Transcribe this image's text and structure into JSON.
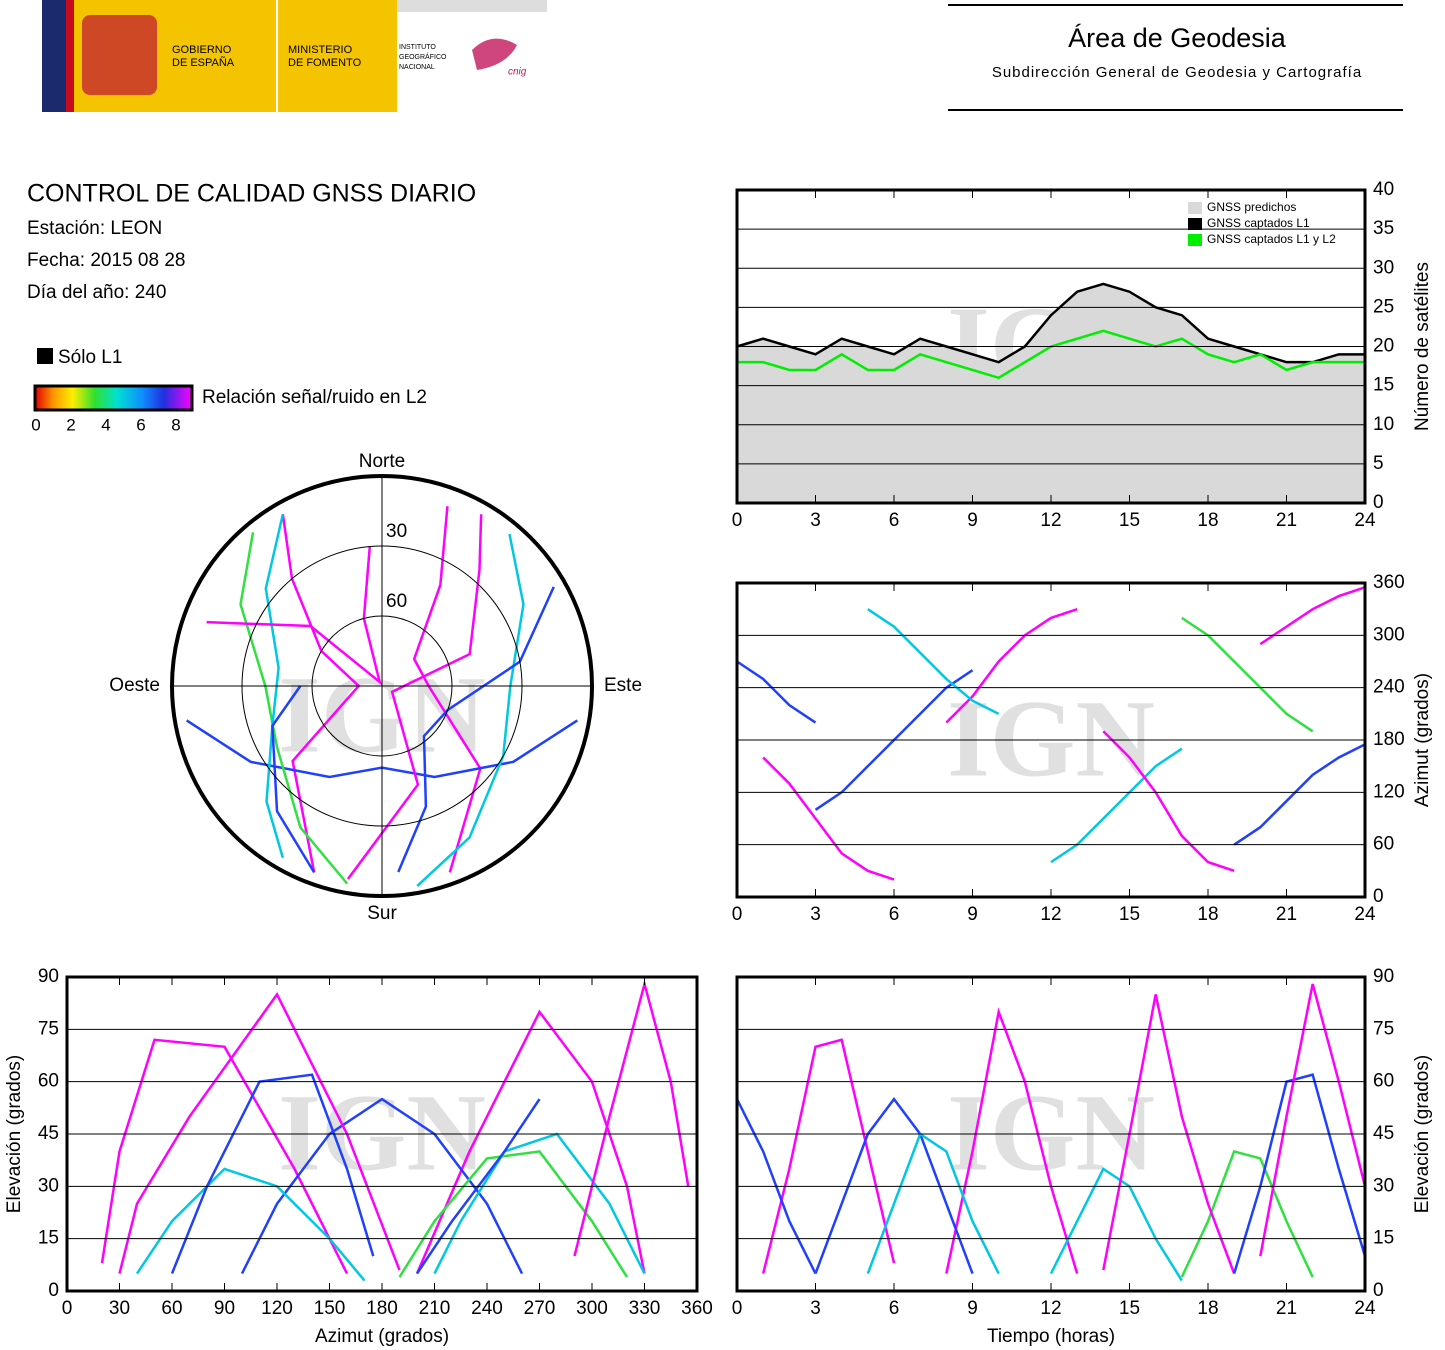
{
  "header": {
    "gobierno": [
      "GOBIERNO",
      "DE ESPAÑA"
    ],
    "ministerio": [
      "MINISTERIO",
      "DE FOMENTO"
    ],
    "instituto": [
      "INSTITUTO",
      "GEOGRÁFICO",
      "NACIONAL"
    ],
    "cnig": "cnig",
    "area": "Área de Geodesia",
    "subdireccion": "Subdirección General de Geodesia y Cartografía"
  },
  "report": {
    "title": "CONTROL DE CALIDAD GNSS DIARIO",
    "station": "Estación: LEON",
    "date": "Fecha: 2015 08 28",
    "doy": "Día del año: 240",
    "l1_only": "Sólo L1",
    "snr_label": "Relación señal/ruido en L2",
    "snr_ticks": [
      0,
      2,
      4,
      6,
      8
    ],
    "watermark": "IGN"
  },
  "chart_data": [
    {
      "type": "line",
      "x": [
        0,
        1,
        2,
        3,
        4,
        5,
        6,
        7,
        8,
        9,
        10,
        11,
        12,
        13,
        14,
        15,
        16,
        17,
        18,
        19,
        20,
        21,
        22,
        23,
        24
      ],
      "xlim": [
        0,
        24
      ],
      "xticks": [
        0,
        3,
        6,
        9,
        12,
        15,
        18,
        21,
        24
      ],
      "ylim": [
        0,
        40
      ],
      "yticks": [
        0,
        5,
        10,
        15,
        20,
        25,
        30,
        35,
        40
      ],
      "y_label": "Número de satélites",
      "grid": true,
      "series": [
        {
          "name": "GNSS predichos",
          "color": "#d9d9d9",
          "style": "area",
          "values": [
            20,
            21,
            20,
            19,
            21,
            20,
            19,
            21,
            20,
            19,
            18,
            20,
            24,
            27,
            28,
            27,
            25,
            24,
            21,
            20,
            19,
            18,
            18,
            19,
            19
          ]
        },
        {
          "name": "GNSS captados L1",
          "color": "#000000",
          "values": [
            20,
            21,
            20,
            19,
            21,
            20,
            19,
            21,
            20,
            19,
            18,
            20,
            24,
            27,
            28,
            27,
            25,
            24,
            21,
            20,
            19,
            18,
            18,
            19,
            19
          ]
        },
        {
          "name": "GNSS captados L1 y L2",
          "color": "#00ee00",
          "values": [
            18,
            18,
            17,
            17,
            19,
            17,
            17,
            19,
            18,
            17,
            16,
            18,
            20,
            21,
            22,
            21,
            20,
            21,
            19,
            18,
            19,
            17,
            18,
            18,
            18
          ]
        }
      ]
    },
    {
      "type": "polar",
      "rticks": [
        30,
        60
      ],
      "directions": {
        "north": "Norte",
        "south": "Sur",
        "east": "Este",
        "west": "Oeste"
      },
      "series": [
        {
          "color": "#ff00ff",
          "x": [
            160,
            130,
            90,
            50,
            30,
            20
          ],
          "values": [
            5,
            35,
            70,
            72,
            40,
            8
          ]
        },
        {
          "color": "#ff00ff",
          "x": [
            200,
            230,
            270,
            300,
            320,
            330
          ],
          "values": [
            5,
            40,
            80,
            60,
            30,
            5
          ]
        },
        {
          "color": "#2040ff",
          "x": [
            100,
            120,
            150,
            180,
            210,
            240,
            260
          ],
          "values": [
            5,
            25,
            45,
            55,
            45,
            25,
            5
          ]
        },
        {
          "color": "#00c8e0",
          "x": [
            40,
            60,
            90,
            120,
            150,
            170
          ],
          "values": [
            5,
            20,
            35,
            30,
            15,
            3
          ]
        },
        {
          "color": "#30e040",
          "x": [
            320,
            300,
            270,
            240,
            210,
            190
          ],
          "values": [
            4,
            20,
            40,
            38,
            20,
            4
          ]
        },
        {
          "color": "#ff00ff",
          "x": [
            190,
            160,
            120,
            70,
            40,
            30
          ],
          "values": [
            6,
            45,
            85,
            50,
            25,
            5
          ]
        },
        {
          "color": "#2040ff",
          "x": [
            60,
            80,
            110,
            140,
            160,
            175
          ],
          "values": [
            5,
            30,
            60,
            62,
            35,
            10
          ]
        },
        {
          "color": "#00c8e0",
          "x": [
            330,
            310,
            280,
            250,
            225,
            210
          ],
          "values": [
            5,
            25,
            45,
            40,
            20,
            5
          ]
        },
        {
          "color": "#ff00ff",
          "x": [
            290,
            310,
            330,
            345,
            355
          ],
          "values": [
            10,
            50,
            88,
            60,
            30
          ]
        },
        {
          "color": "#2040ff",
          "x": [
            270,
            250,
            220,
            200
          ],
          "values": [
            55,
            40,
            20,
            5
          ]
        }
      ]
    },
    {
      "type": "line",
      "xlim": [
        0,
        24
      ],
      "xticks": [
        0,
        3,
        6,
        9,
        12,
        15,
        18,
        21,
        24
      ],
      "ylim": [
        0,
        360
      ],
      "yticks": [
        0,
        60,
        120,
        180,
        240,
        300,
        360
      ],
      "y_label": "Azimut (grados)",
      "grid": true,
      "series": [
        {
          "color": "#ff00ff",
          "x": [
            1,
            2,
            3,
            4,
            5,
            6
          ],
          "values": [
            160,
            130,
            90,
            50,
            30,
            20
          ]
        },
        {
          "color": "#ff00ff",
          "x": [
            8,
            9,
            10,
            11,
            12,
            13
          ],
          "values": [
            200,
            230,
            270,
            300,
            320,
            330
          ]
        },
        {
          "color": "#2040ff",
          "x": [
            3,
            4,
            5,
            6,
            7,
            8,
            9
          ],
          "values": [
            100,
            120,
            150,
            180,
            210,
            240,
            260
          ]
        },
        {
          "color": "#00c8e0",
          "x": [
            12,
            13,
            14,
            15,
            16,
            17
          ],
          "values": [
            40,
            60,
            90,
            120,
            150,
            170
          ]
        },
        {
          "color": "#30e040",
          "x": [
            17,
            18,
            19,
            20,
            21,
            22
          ],
          "values": [
            320,
            300,
            270,
            240,
            210,
            190
          ]
        },
        {
          "color": "#ff00ff",
          "x": [
            14,
            15,
            16,
            17,
            18,
            19
          ],
          "values": [
            190,
            160,
            120,
            70,
            40,
            30
          ]
        },
        {
          "color": "#2040ff",
          "x": [
            19,
            20,
            21,
            22,
            23,
            24
          ],
          "values": [
            60,
            80,
            110,
            140,
            160,
            175
          ]
        },
        {
          "color": "#00c8e0",
          "x": [
            5,
            6,
            7,
            8,
            9,
            10
          ],
          "values": [
            330,
            310,
            280,
            250,
            225,
            210
          ]
        },
        {
          "color": "#ff00ff",
          "x": [
            20,
            21,
            22,
            23,
            24
          ],
          "values": [
            290,
            310,
            330,
            345,
            355
          ]
        },
        {
          "color": "#2040ff",
          "x": [
            0,
            1,
            2,
            3
          ],
          "values": [
            270,
            250,
            220,
            200
          ]
        }
      ]
    },
    {
      "type": "line",
      "xlim": [
        0,
        360
      ],
      "xticks": [
        0,
        30,
        60,
        90,
        120,
        150,
        180,
        210,
        240,
        270,
        300,
        330,
        360
      ],
      "ylim": [
        0,
        90
      ],
      "yticks": [
        0,
        15,
        30,
        45,
        60,
        75,
        90
      ],
      "x_label": "Azimut (grados)",
      "y_label": "Elevación (grados)",
      "grid": true,
      "series": [
        {
          "color": "#ff00ff",
          "x": [
            160,
            130,
            90,
            50,
            30,
            20
          ],
          "values": [
            5,
            35,
            70,
            72,
            40,
            8
          ]
        },
        {
          "color": "#ff00ff",
          "x": [
            200,
            230,
            270,
            300,
            320,
            330
          ],
          "values": [
            5,
            40,
            80,
            60,
            30,
            5
          ]
        },
        {
          "color": "#2040ff",
          "x": [
            100,
            120,
            150,
            180,
            210,
            240,
            260
          ],
          "values": [
            5,
            25,
            45,
            55,
            45,
            25,
            5
          ]
        },
        {
          "color": "#00c8e0",
          "x": [
            40,
            60,
            90,
            120,
            150,
            170
          ],
          "values": [
            5,
            20,
            35,
            30,
            15,
            3
          ]
        },
        {
          "color": "#30e040",
          "x": [
            320,
            300,
            270,
            240,
            210,
            190
          ],
          "values": [
            4,
            20,
            40,
            38,
            20,
            4
          ]
        },
        {
          "color": "#ff00ff",
          "x": [
            190,
            160,
            120,
            70,
            40,
            30
          ],
          "values": [
            6,
            45,
            85,
            50,
            25,
            5
          ]
        },
        {
          "color": "#2040ff",
          "x": [
            60,
            80,
            110,
            140,
            160,
            175
          ],
          "values": [
            5,
            30,
            60,
            62,
            35,
            10
          ]
        },
        {
          "color": "#00c8e0",
          "x": [
            330,
            310,
            280,
            250,
            225,
            210
          ],
          "values": [
            5,
            25,
            45,
            40,
            20,
            5
          ]
        },
        {
          "color": "#ff00ff",
          "x": [
            290,
            310,
            330,
            345,
            355
          ],
          "values": [
            10,
            50,
            88,
            60,
            30
          ]
        },
        {
          "color": "#2040ff",
          "x": [
            270,
            250,
            220,
            200
          ],
          "values": [
            55,
            40,
            20,
            5
          ]
        }
      ]
    },
    {
      "type": "line",
      "xlim": [
        0,
        24
      ],
      "xticks": [
        0,
        3,
        6,
        9,
        12,
        15,
        18,
        21,
        24
      ],
      "ylim": [
        0,
        90
      ],
      "yticks": [
        0,
        15,
        30,
        45,
        60,
        75,
        90
      ],
      "x_label": "Tiempo (horas)",
      "y_label": "Elevación (grados)",
      "grid": true,
      "series": [
        {
          "color": "#ff00ff",
          "x": [
            1,
            2,
            3,
            4,
            5,
            6
          ],
          "values": [
            5,
            35,
            70,
            72,
            40,
            8
          ]
        },
        {
          "color": "#ff00ff",
          "x": [
            8,
            9,
            10,
            11,
            12,
            13
          ],
          "values": [
            5,
            40,
            80,
            60,
            30,
            5
          ]
        },
        {
          "color": "#2040ff",
          "x": [
            3,
            4,
            5,
            6,
            7,
            8,
            9
          ],
          "values": [
            5,
            25,
            45,
            55,
            45,
            25,
            5
          ]
        },
        {
          "color": "#00c8e0",
          "x": [
            12,
            13,
            14,
            15,
            16,
            17
          ],
          "values": [
            5,
            20,
            35,
            30,
            15,
            3
          ]
        },
        {
          "color": "#30e040",
          "x": [
            17,
            18,
            19,
            20,
            21,
            22
          ],
          "values": [
            4,
            20,
            40,
            38,
            20,
            4
          ]
        },
        {
          "color": "#ff00ff",
          "x": [
            14,
            15,
            16,
            17,
            18,
            19
          ],
          "values": [
            6,
            45,
            85,
            50,
            25,
            5
          ]
        },
        {
          "color": "#2040ff",
          "x": [
            19,
            20,
            21,
            22,
            23,
            24
          ],
          "values": [
            5,
            30,
            60,
            62,
            35,
            10
          ]
        },
        {
          "color": "#00c8e0",
          "x": [
            5,
            6,
            7,
            8,
            9,
            10
          ],
          "values": [
            5,
            25,
            45,
            40,
            20,
            5
          ]
        },
        {
          "color": "#ff00ff",
          "x": [
            20,
            21,
            22,
            23,
            24
          ],
          "values": [
            10,
            50,
            88,
            60,
            30
          ]
        },
        {
          "color": "#2040ff",
          "x": [
            0,
            1,
            2,
            3
          ],
          "values": [
            55,
            40,
            20,
            5
          ]
        }
      ]
    }
  ]
}
